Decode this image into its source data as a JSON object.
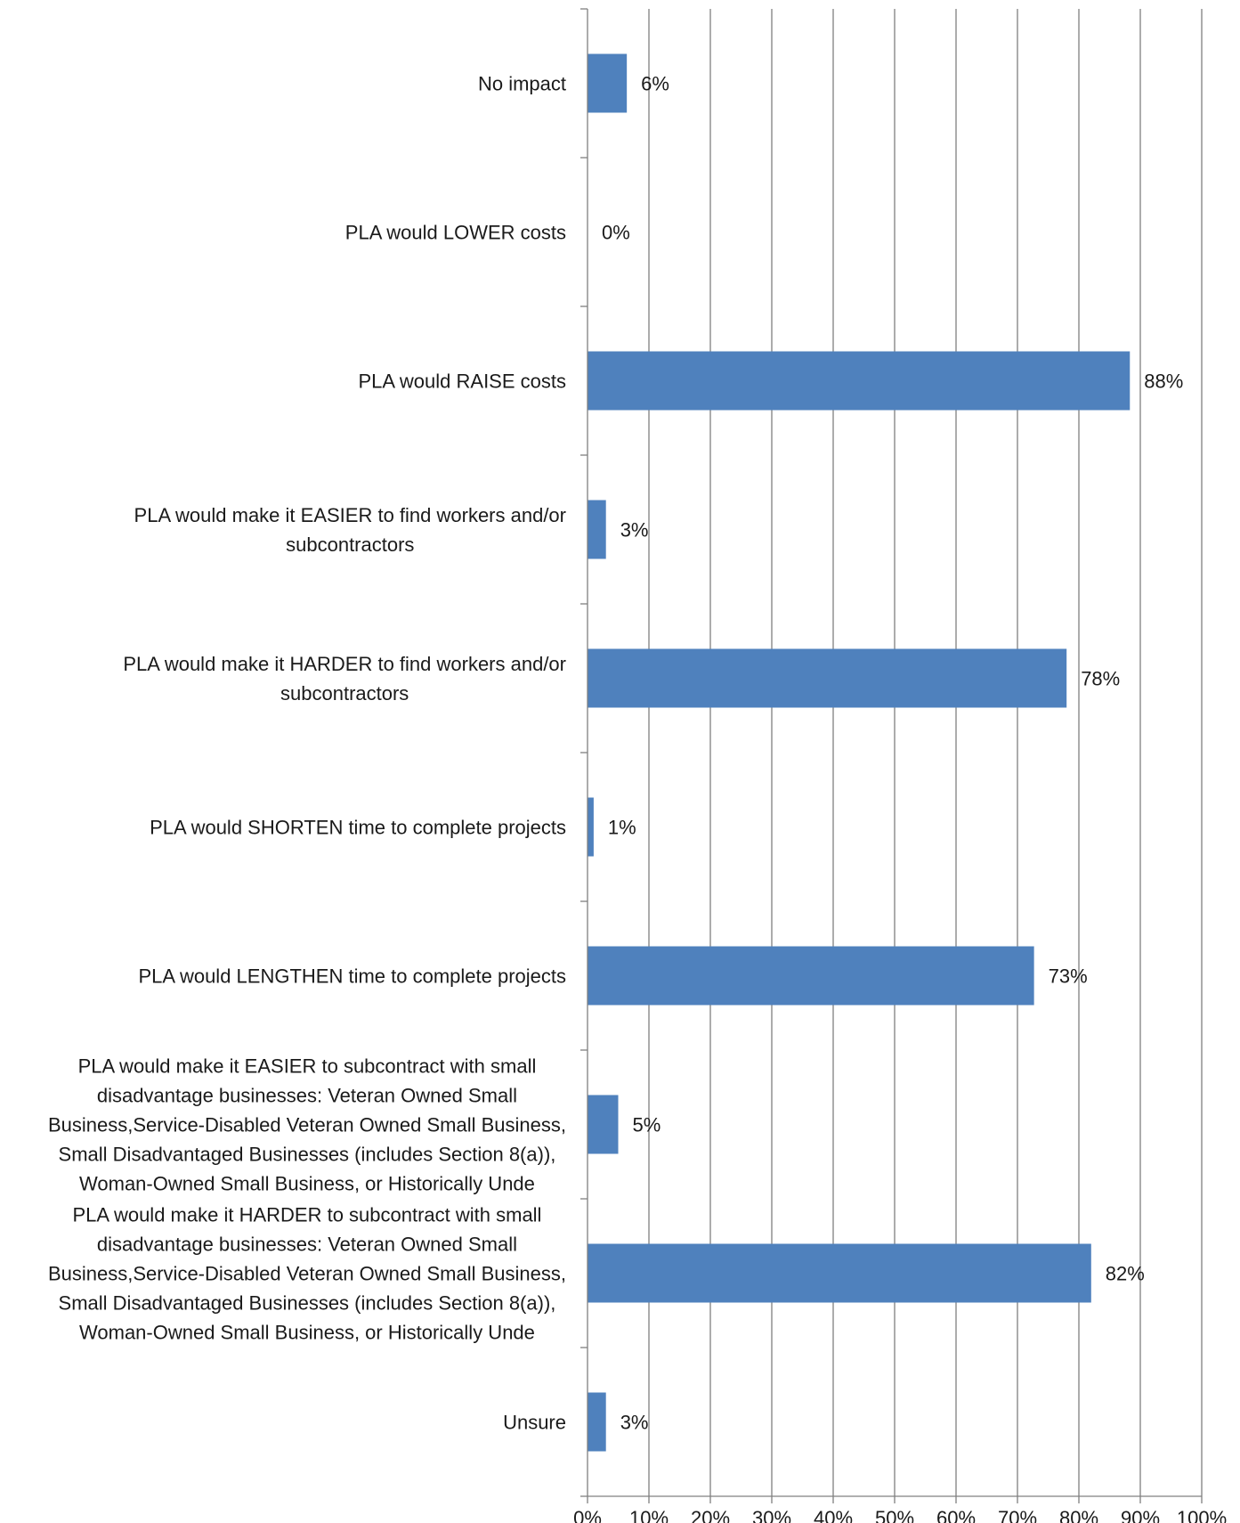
{
  "chart_data": {
    "type": "bar",
    "orientation": "horizontal",
    "categories": [
      [
        "No impact"
      ],
      [
        "PLA would LOWER costs"
      ],
      [
        "PLA would RAISE costs"
      ],
      [
        "PLA would make it EASIER to find workers and/or",
        "subcontractors"
      ],
      [
        "PLA would make it HARDER to find workers and/or",
        "subcontractors"
      ],
      [
        "PLA would SHORTEN time to complete projects"
      ],
      [
        "PLA would LENGTHEN time to complete projects"
      ],
      [
        "PLA would make it EASIER to subcontract with small",
        "disadvantage businesses: Veteran Owned Small",
        "Business,Service-Disabled Veteran Owned Small Business,",
        "Small Disadvantaged Businesses (includes Section 8(a)),",
        "Woman-Owned Small Business, or Historically Unde"
      ],
      [
        "PLA would make it HARDER to subcontract with small",
        "disadvantage businesses: Veteran Owned Small",
        "Business,Service-Disabled Veteran Owned Small Business,",
        "Small Disadvantaged Businesses (includes Section 8(a)),",
        "Woman-Owned Small Business, or Historically Unde"
      ],
      [
        "Unsure"
      ]
    ],
    "values": [
      6.4,
      0,
      88.3,
      3.0,
      78.0,
      1.0,
      72.7,
      5.0,
      82.0,
      3.0
    ],
    "data_labels": [
      "6%",
      "0%",
      "88%",
      "3%",
      "78%",
      "1%",
      "73%",
      "5%",
      "82%",
      "3%"
    ],
    "xlim": [
      0,
      100
    ],
    "xticks": [
      0,
      10,
      20,
      30,
      40,
      50,
      60,
      70,
      80,
      90,
      100
    ],
    "xtick_labels": [
      "0%",
      "10%",
      "20%",
      "30%",
      "40%",
      "50%",
      "60%",
      "70%",
      "80%",
      "90%",
      "100%"
    ],
    "title": "",
    "xlabel": "",
    "ylabel": "",
    "grid": "vertical",
    "legend": "none",
    "bar_color": "#4f81bd",
    "grid_color": "#808080"
  }
}
